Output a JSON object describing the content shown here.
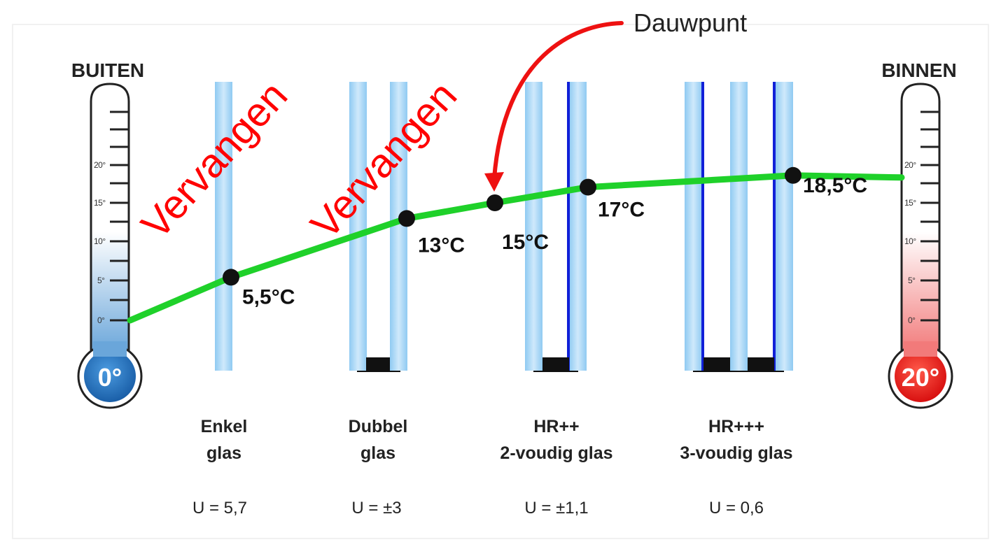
{
  "colors": {
    "curve": "#1fd12a",
    "glass": "#a9d6f5",
    "coating": "#1020d8",
    "arrow": "#ee1111",
    "cold_bulb": "#1a6fc0",
    "warm_bulb": "#ee2222"
  },
  "outside": {
    "title": "BUITEN",
    "bulb": "0°"
  },
  "inside": {
    "title": "BINNEN",
    "bulb": "20°"
  },
  "thermometer_ticks": [
    "20°",
    "15°",
    "10°",
    "5°",
    "0°"
  ],
  "glass_types": [
    {
      "line1": "Enkel",
      "line2": "glas",
      "u": "U = 5,7"
    },
    {
      "line1": "Dubbel",
      "line2": "glas",
      "u": "U = ±3"
    },
    {
      "line1": "HR++",
      "line2": "2-voudig glas",
      "u": "U = ±1,1"
    },
    {
      "line1": "HR+++",
      "line2": "3-voudig glas",
      "u": "U = 0,6"
    }
  ],
  "temperature_points": [
    {
      "label": "5,5°C",
      "value": 5.5
    },
    {
      "label": "13°C",
      "value": 13
    },
    {
      "label": "15°C",
      "value": 15
    },
    {
      "label": "17°C",
      "value": 17
    },
    {
      "label": "18,5°C",
      "value": 18.5
    }
  ],
  "annotations": {
    "replace_1": "Vervangen",
    "replace_2": "Vervangen",
    "dew_point": "Dauwpunt"
  }
}
